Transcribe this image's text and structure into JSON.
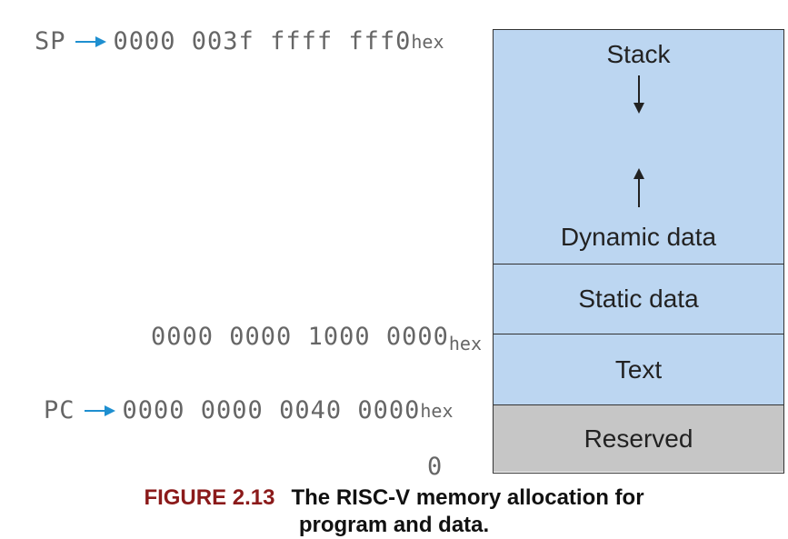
{
  "addresses": {
    "sp": {
      "pointer": "SP",
      "value": "0000 003f ffff fff0",
      "suffix": "hex"
    },
    "data_start": {
      "value": "0000 0000 1000 0000",
      "suffix": "hex"
    },
    "pc": {
      "pointer": "PC",
      "value": "0000 0000 0040 0000",
      "suffix": "hex"
    },
    "zero": "0"
  },
  "segments": {
    "stack": "Stack",
    "dynamic": "Dynamic data",
    "static": "Static data",
    "text": "Text",
    "reserved": "Reserved"
  },
  "colors": {
    "segment_fill": "#bcd6f1",
    "reserved_fill": "#c6c6c6",
    "pointer_arrow": "#1e8fd0",
    "figure_label": "#8b1a1a"
  },
  "caption": {
    "figure": "FIGURE 2.13",
    "line1": "The RISC-V memory allocation for",
    "line2": "program and data."
  }
}
